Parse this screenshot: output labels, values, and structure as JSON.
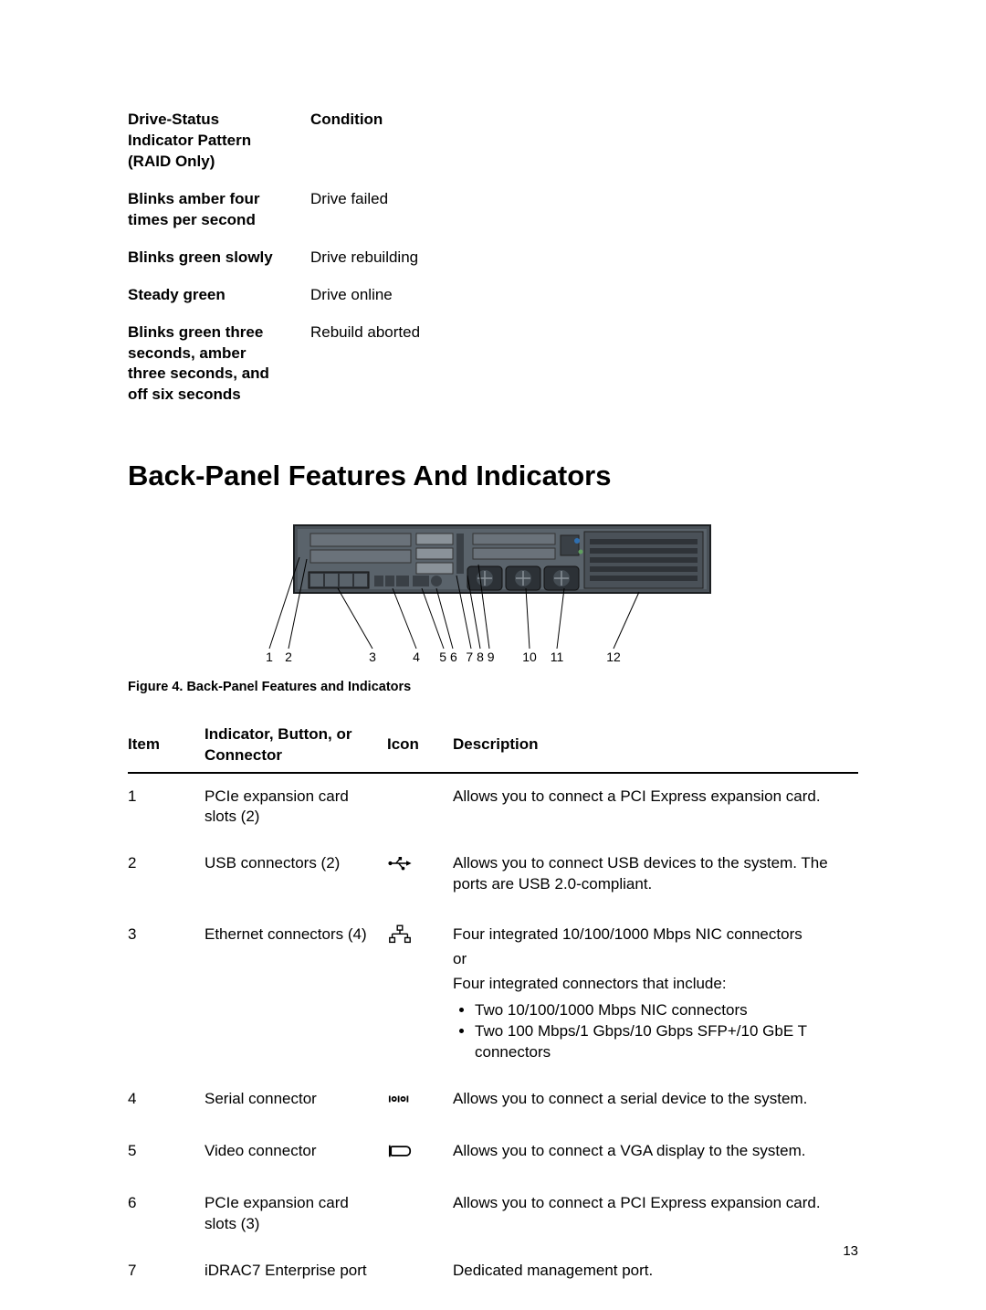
{
  "page_number": "13",
  "drive_status_table": {
    "headers": {
      "col1": "Drive-Status Indicator Pattern (RAID Only)",
      "col2": "Condition"
    },
    "rows": [
      {
        "pattern": "Blinks amber four times per second",
        "condition": "Drive failed"
      },
      {
        "pattern": "Blinks green slowly",
        "condition": "Drive rebuilding"
      },
      {
        "pattern": "Steady green",
        "condition": "Drive online"
      },
      {
        "pattern": "Blinks green three seconds, amber three seconds, and off six seconds",
        "condition": "Rebuild aborted"
      }
    ]
  },
  "heading": "Back-Panel Features And Indicators",
  "figure": {
    "caption": "Figure 4. Back-Panel Features and Indicators",
    "callouts": [
      "1",
      "2",
      "3",
      "4",
      "5 6",
      "7 8 9",
      "10",
      "11",
      "12"
    ],
    "panel_bg": "#4a5158",
    "panel_bg_light": "#6a727a",
    "vent_color": "#bfc5cb",
    "line_color": "#000000"
  },
  "features_table": {
    "headers": {
      "item": "Item",
      "indicator": "Indicator, Button, or Connector",
      "icon": "Icon",
      "desc": "Description"
    },
    "rows": [
      {
        "item": "1",
        "indicator": "PCIe expansion card slots (2)",
        "icon": "none",
        "desc_lines": [
          "Allows you to connect a PCI Express expansion card."
        ]
      },
      {
        "item": "2",
        "indicator": "USB connectors (2)",
        "icon": "usb",
        "desc_lines": [
          "Allows you to connect USB devices to the system. The ports are USB 2.0-compliant."
        ]
      },
      {
        "item": "3",
        "indicator": "Ethernet connectors (4)",
        "icon": "ethernet",
        "desc_lines": [
          "Four integrated 10/100/1000 Mbps NIC connectors",
          "or",
          "Four integrated connectors that include:"
        ],
        "bullets": [
          "Two 10/100/1000 Mbps NIC connectors",
          "Two 100 Mbps/1 Gbps/10 Gbps SFP+/10 GbE T connectors"
        ]
      },
      {
        "item": "4",
        "indicator": "Serial connector",
        "icon": "serial",
        "desc_lines": [
          "Allows you to connect a serial device to the system."
        ]
      },
      {
        "item": "5",
        "indicator": "Video connector",
        "icon": "vga",
        "desc_lines": [
          "Allows you to connect a VGA display to the system."
        ]
      },
      {
        "item": "6",
        "indicator": "PCIe expansion card slots (3)",
        "icon": "none",
        "desc_lines": [
          "Allows you to connect a PCI Express expansion card."
        ]
      },
      {
        "item": "7",
        "indicator": "iDRAC7 Enterprise port",
        "icon": "none",
        "desc_lines": [
          "Dedicated management port."
        ]
      }
    ]
  },
  "colors": {
    "text": "#000000",
    "bg": "#ffffff",
    "rule": "#000000"
  }
}
